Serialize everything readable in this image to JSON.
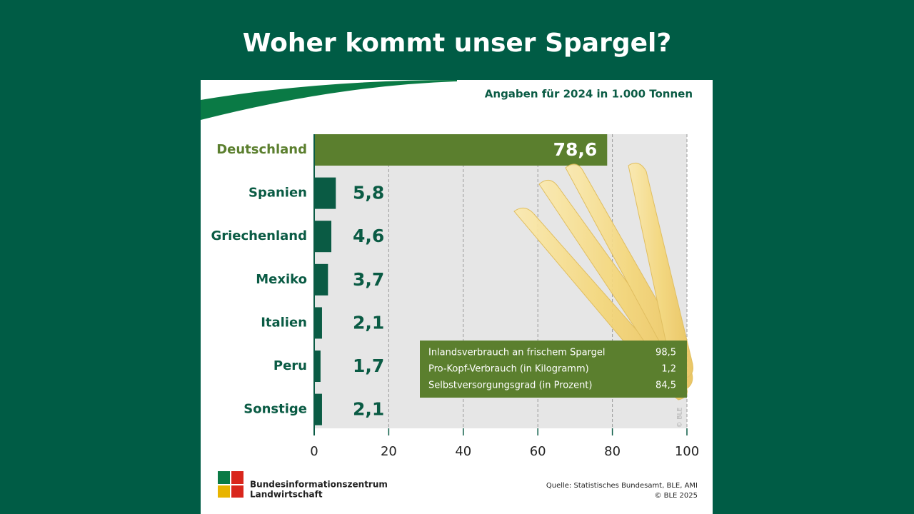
{
  "chart_data": {
    "type": "barh",
    "title": "Woher kommt unser Spargel?",
    "subtitle": "Angaben für 2024 in 1.000 Tonnen",
    "categories": [
      "Deutschland",
      "Spanien",
      "Griechenland",
      "Mexiko",
      "Italien",
      "Peru",
      "Sonstige"
    ],
    "values": [
      78.6,
      5.8,
      4.6,
      3.7,
      2.1,
      1.7,
      2.1
    ],
    "value_labels": [
      "78,6",
      "5,8",
      "4,6",
      "3,7",
      "2,1",
      "1,7",
      "2,1"
    ],
    "colors": [
      "#5b7f2e",
      "#0a5b44",
      "#0a5b44",
      "#0a5b44",
      "#0a5b44",
      "#0a5b44",
      "#0a5b44"
    ],
    "xlim": [
      0,
      100
    ],
    "xticks": [
      0,
      20,
      40,
      60,
      80,
      100
    ],
    "grid": true,
    "info_box": {
      "rows": [
        [
          "Inlandsverbrauch an frischem Spargel",
          "98,5"
        ],
        [
          "Pro-Kopf-Verbrauch (in Kilogramm)",
          "1,2"
        ],
        [
          "Selbstversorgungsgrad (in Prozent)",
          "84,5"
        ]
      ]
    },
    "image_credit": "© BLE",
    "source": "Quelle: Statistisches Bundesamt, BLE, AMI",
    "copyright": "© BLE 2025",
    "publisher": [
      "Bundesinformationszentrum",
      "Landwirtschaft"
    ]
  }
}
